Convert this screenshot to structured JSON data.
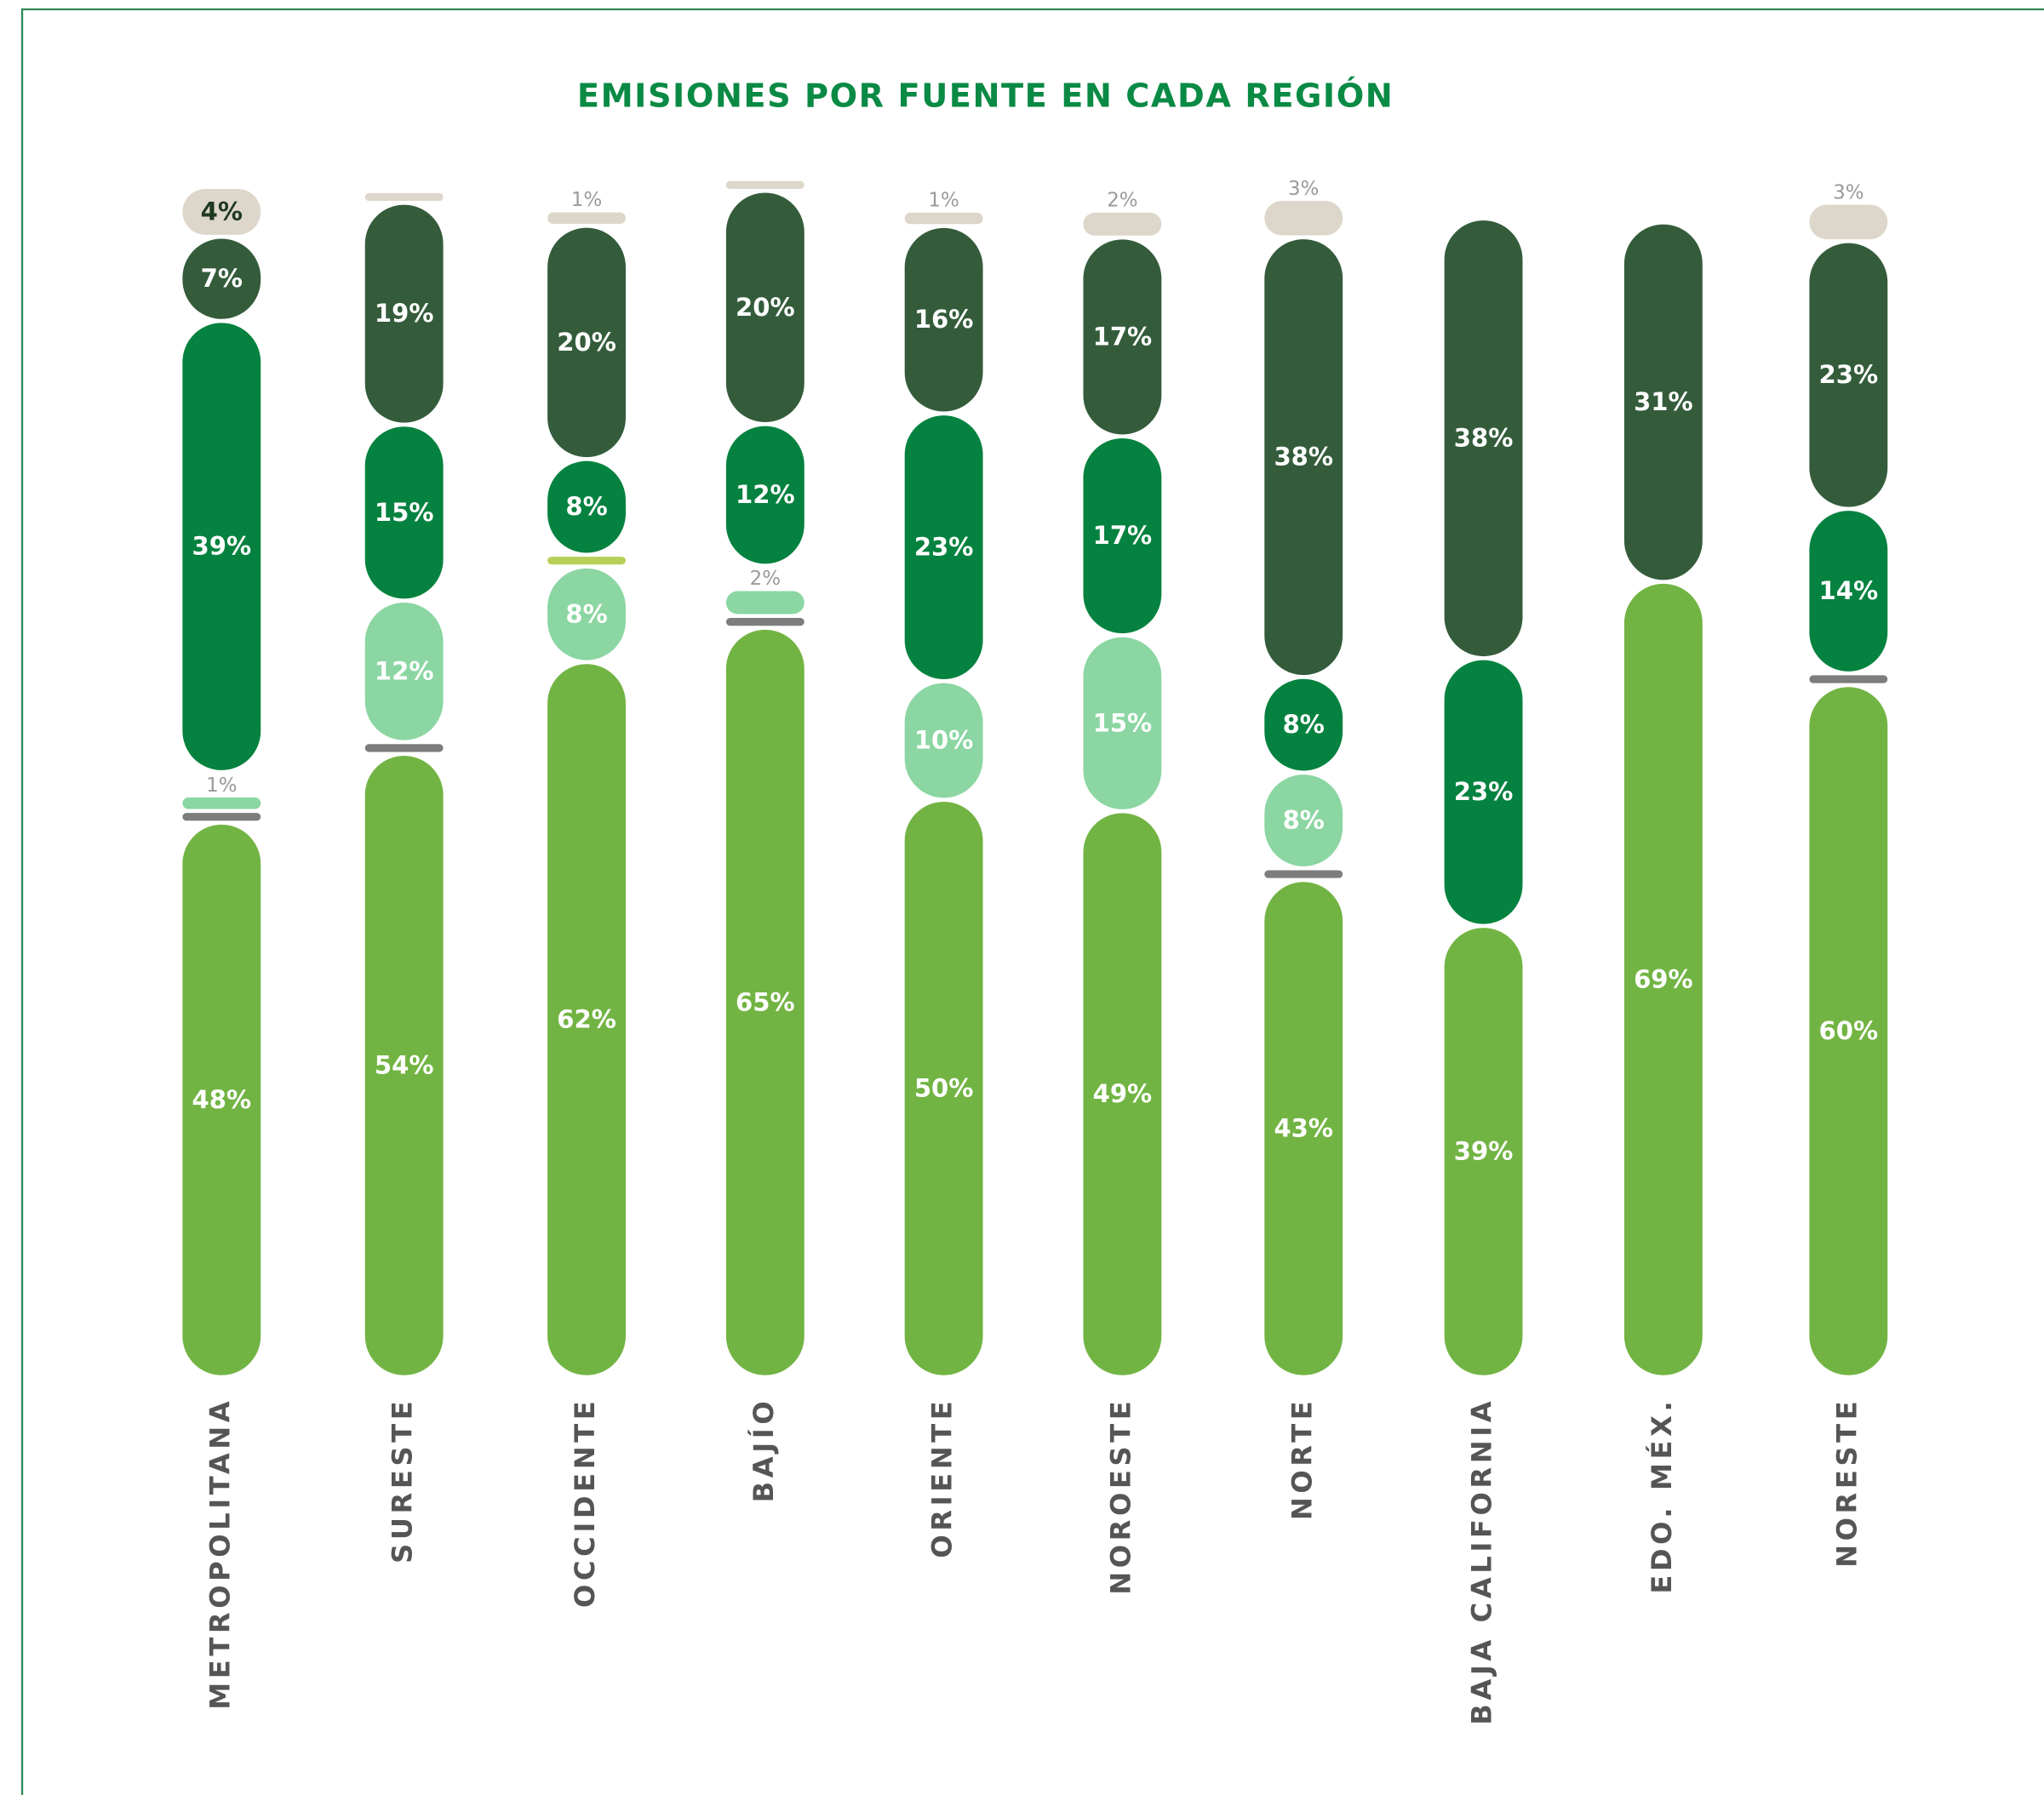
{
  "chart_data": {
    "type": "stacked_bar",
    "title": "EMISIONES POR FUENTE EN CADA REGIÓN",
    "categories": [
      "METROPOLITANA",
      "SURESTE",
      "OCCIDENTE",
      "BAJÍO",
      "ORIENTE",
      "NOROESTE",
      "NORTE",
      "BAJA CALIFORNIA",
      "EDO. MÉX.",
      "NORESTE"
    ],
    "series": [
      {
        "color": "#72b443",
        "values": [
          48,
          54,
          62,
          65,
          50,
          49,
          43,
          39,
          69,
          60
        ],
        "value_labels": [
          "48%",
          "54%",
          "62%",
          "65%",
          "50%",
          "49%",
          "43%",
          "39%",
          "69%",
          "60%"
        ]
      },
      {
        "color": "#7d7d7d",
        "values": [
          0.3,
          0.3,
          0,
          0.3,
          0,
          0,
          0.3,
          0,
          0,
          0.3
        ],
        "value_labels": [
          null,
          null,
          null,
          null,
          null,
          null,
          null,
          null,
          null,
          null
        ]
      },
      {
        "color": "#8bd6a2",
        "values": [
          1,
          12,
          8,
          2,
          10,
          15,
          8,
          0,
          0,
          0
        ],
        "value_labels": [
          "1%",
          "12%",
          "8%",
          "2%",
          "10%",
          "15%",
          "8%",
          null,
          null,
          null
        ]
      },
      {
        "color": "#b7cf58",
        "values": [
          0,
          0,
          0.5,
          0,
          0,
          0,
          0,
          0,
          0,
          0
        ],
        "value_labels": [
          null,
          null,
          null,
          null,
          null,
          null,
          null,
          null,
          null,
          null
        ]
      },
      {
        "color": "#05823f",
        "values": [
          39,
          15,
          8,
          12,
          23,
          17,
          8,
          23,
          0,
          14
        ],
        "value_labels": [
          "39%",
          "15%",
          "8%",
          "12%",
          "23%",
          "17%",
          "8%",
          "23%",
          null,
          "14%"
        ]
      },
      {
        "color": "#345c3b",
        "values": [
          7,
          19,
          20,
          20,
          16,
          17,
          38,
          38,
          31,
          23
        ],
        "value_labels": [
          "7%",
          "19%",
          "20%",
          "20%",
          "16%",
          "17%",
          "38%",
          "38%",
          "31%",
          "23%"
        ]
      },
      {
        "color": "#ddd6ca",
        "values": [
          4,
          0.3,
          1,
          0.3,
          1,
          2,
          3,
          0,
          0,
          3
        ],
        "value_labels": [
          "4%",
          null,
          "1%",
          null,
          "1%",
          "2%",
          "3%",
          null,
          null,
          "3%"
        ]
      }
    ]
  }
}
